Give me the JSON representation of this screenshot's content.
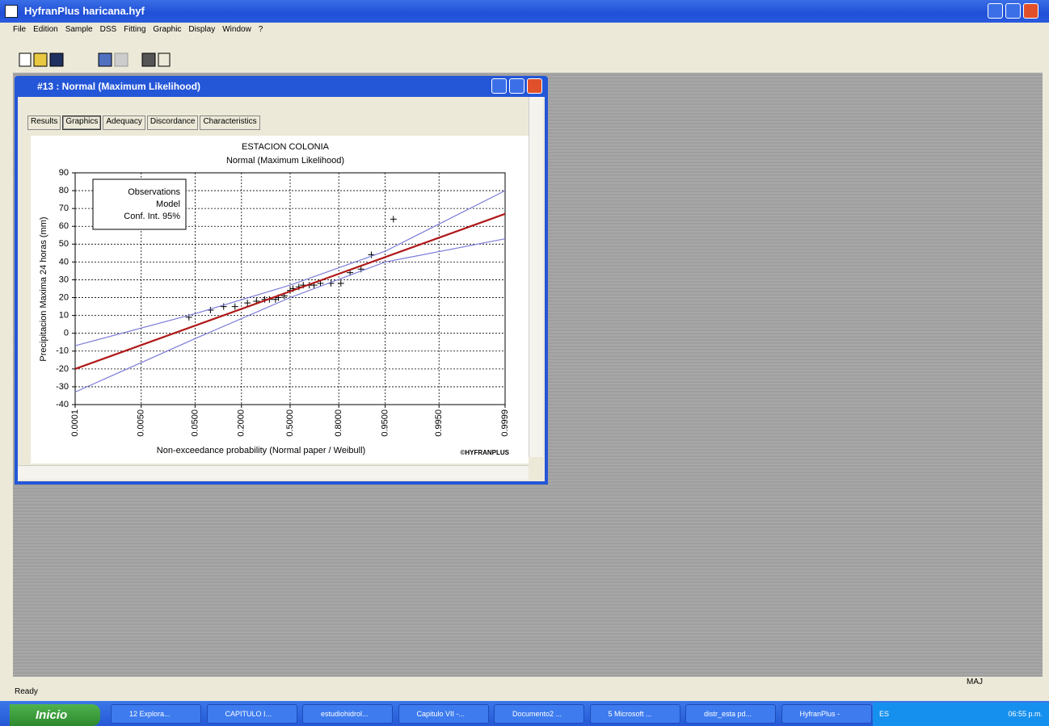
{
  "app": {
    "title": "HyfranPlus   haricana.hyf",
    "menu": [
      "File",
      "Edition",
      "Sample",
      "DSS",
      "Fitting",
      "Graphic",
      "Display",
      "Window",
      "?"
    ]
  },
  "child_window": {
    "title": "#13 : Normal (Maximum Likelihood)",
    "tabs": [
      "Results",
      "Graphics",
      "Adequacy",
      "Discordance",
      "Characteristics"
    ],
    "active_tab": "Graphics"
  },
  "chart_data": {
    "type": "probability-plot",
    "title": "ESTACION COLONIA",
    "subtitle": "Normal (Maximum Likelihood)",
    "x_label": "Non-exceedance probability (Normal paper / Weibull)",
    "y_label": "Precipitacion Maxima 24 horas  (mm)",
    "annotation": "©HYFRANPLUS",
    "xscale": "normal",
    "grid": true,
    "xlim": [
      0.0001,
      0.9999
    ],
    "xticks": [
      0.0001,
      {
        "value": 0.005,
        "label": "0.0050"
      },
      {
        "value": 0.05,
        "label": "0.0500"
      },
      {
        "value": 0.2,
        "label": "0.2000"
      },
      {
        "value": 0.5,
        "label": "0.5000"
      },
      {
        "value": 0.8,
        "label": "0.8000"
      },
      {
        "value": 0.95,
        "label": "0.9500"
      },
      {
        "value": 0.995,
        "label": "0.9950"
      },
      0.9999
    ],
    "ylim": [
      -40,
      90
    ],
    "yticks": [
      -40,
      -30,
      -20,
      -10,
      0,
      10,
      20,
      30,
      40,
      50,
      60,
      70,
      80,
      90
    ],
    "series": [
      {
        "name": "Observations",
        "color": "#000000",
        "x": [
          0.04,
          0.084,
          0.125,
          0.17,
          0.23,
          0.28,
          0.33,
          0.36,
          0.4,
          0.42,
          0.46,
          0.5,
          0.52,
          0.56,
          0.59,
          0.63,
          0.66,
          0.7,
          0.76,
          0.81,
          0.85,
          0.89,
          0.92,
          0.963
        ],
        "values": [
          9,
          13,
          15,
          15,
          17,
          18,
          19,
          19,
          19,
          20,
          21,
          24,
          25,
          26,
          27,
          27,
          27,
          28,
          28,
          28,
          34,
          36,
          44,
          64
        ]
      },
      {
        "name": "Model",
        "color": "#b01818",
        "x": [
          0.0001,
          0.9999
        ],
        "values": [
          -20,
          67
        ]
      },
      {
        "name": "Conf. Int. 95%",
        "color": "#7b7bd8",
        "x": [
          0.0001,
          0.05,
          0.5,
          0.95,
          0.9999
        ],
        "upper": [
          -7,
          11,
          27,
          46,
          80
        ],
        "lower": [
          -33,
          -3,
          20,
          40,
          53
        ]
      }
    ]
  },
  "status": {
    "left": "Ready",
    "right": "MAJ"
  },
  "taskbar": {
    "start": "Inicio",
    "items": [
      "12 Explora...",
      "CAPITULO I...",
      "estudiohidrol...",
      "Capitulo VII -...",
      "Documento2 ...",
      "5 Microsoft ...",
      "distr_esta pd...",
      "HyfranPlus -"
    ],
    "tray": [
      "ES",
      "06:55 p.m."
    ]
  }
}
